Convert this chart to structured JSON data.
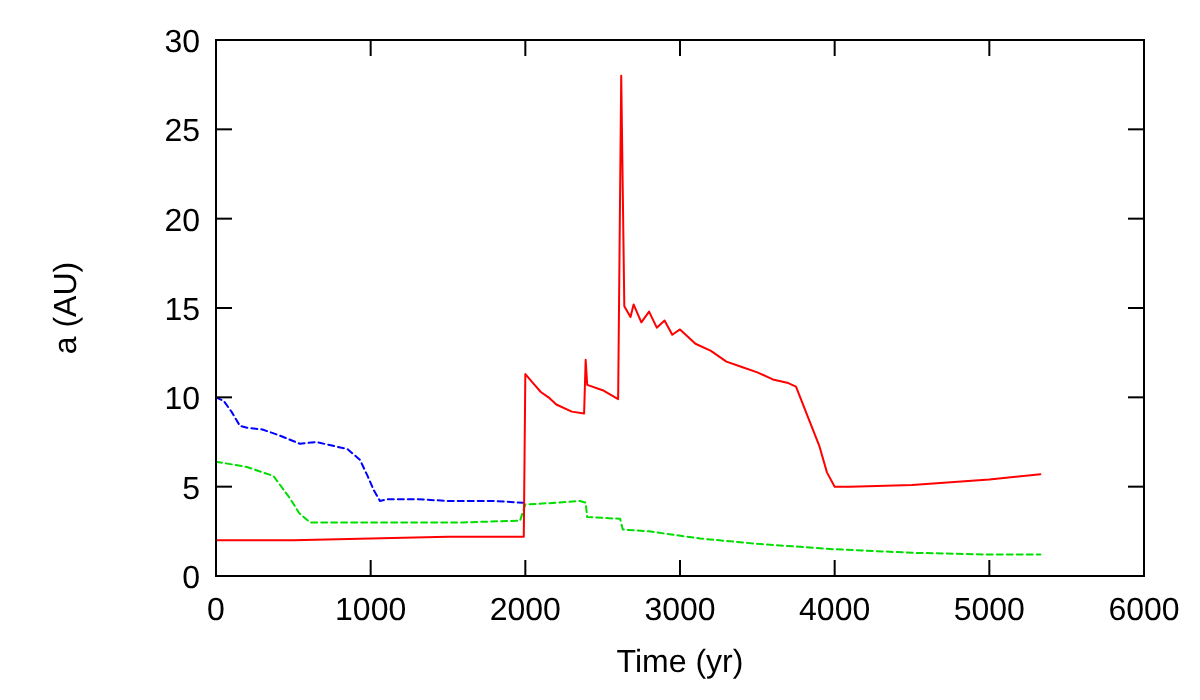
{
  "chart_data": {
    "type": "line",
    "xlabel": "Time (yr)",
    "ylabel": "a (AU)",
    "xlim": [
      0,
      6000
    ],
    "ylim": [
      0,
      30
    ],
    "xticks": [
      0,
      1000,
      2000,
      3000,
      4000,
      5000,
      6000
    ],
    "yticks": [
      0,
      5,
      10,
      15,
      20,
      25,
      30
    ],
    "grid": false,
    "series": [
      {
        "color": "#0000ff",
        "line_style": "dashed",
        "x": [
          0,
          50,
          100,
          155,
          200,
          300,
          400,
          543,
          647,
          750,
          850,
          931,
          980,
          1020,
          1060,
          1110,
          1300,
          1500,
          1800,
          1988
        ],
        "values": [
          10,
          9.8,
          9.2,
          8.4,
          8.3,
          8.2,
          7.9,
          7.4,
          7.5,
          7.3,
          7.1,
          6.5,
          5.6,
          4.8,
          4.2,
          4.3,
          4.3,
          4.2,
          4.2,
          4.1
        ]
      },
      {
        "color": "#00dd00",
        "line_style": "dashed",
        "x": [
          0,
          200,
          371,
          474,
          540,
          608,
          800,
          1190,
          1600,
          1966,
          2000,
          2200,
          2353,
          2390,
          2400,
          2613,
          2630,
          2800,
          3130,
          3500,
          3993,
          4500,
          5000,
          5330
        ],
        "values": [
          6.4,
          6.1,
          5.6,
          4.4,
          3.5,
          3.0,
          3.0,
          3.0,
          3.0,
          3.1,
          4.0,
          4.1,
          4.2,
          4.1,
          3.3,
          3.2,
          2.6,
          2.5,
          2.1,
          1.8,
          1.5,
          1.3,
          1.2,
          1.2
        ]
      },
      {
        "color": "#ff0000",
        "line_style": "solid",
        "x": [
          0,
          500,
          1000,
          1500,
          1990,
          2000,
          2050,
          2100,
          2150,
          2200,
          2300,
          2380,
          2390,
          2400,
          2500,
          2600,
          2620,
          2640,
          2680,
          2700,
          2750,
          2800,
          2850,
          2900,
          2950,
          3000,
          3100,
          3200,
          3300,
          3400,
          3500,
          3600,
          3700,
          3750,
          3800,
          3900,
          3950,
          4000,
          4100,
          4500,
          5000,
          5330
        ],
        "values": [
          2.0,
          2.0,
          2.1,
          2.2,
          2.2,
          11.3,
          10.8,
          10.3,
          10.0,
          9.6,
          9.2,
          9.1,
          12.1,
          10.7,
          10.4,
          9.9,
          28.0,
          15.1,
          14.5,
          15.2,
          14.2,
          14.8,
          13.9,
          14.3,
          13.5,
          13.8,
          13.0,
          12.6,
          12.0,
          11.7,
          11.4,
          11.0,
          10.8,
          10.6,
          9.5,
          7.3,
          5.8,
          5.0,
          5.0,
          5.1,
          5.4,
          5.7
        ]
      }
    ]
  }
}
